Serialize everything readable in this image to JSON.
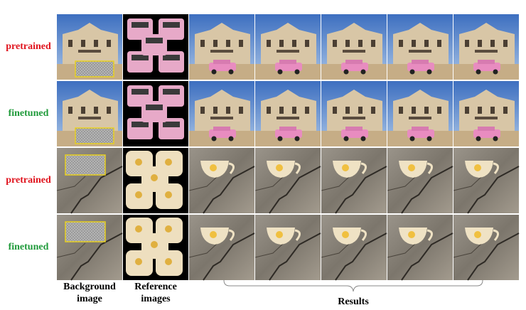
{
  "rows": [
    {
      "label": "pretrained"
    },
    {
      "label": "finetuned"
    },
    {
      "label": "pretrained"
    },
    {
      "label": "finetuned"
    }
  ],
  "column_labels": [
    {
      "lines": [
        "Background",
        "image"
      ]
    },
    {
      "lines": [
        "Reference",
        "images"
      ]
    }
  ],
  "results_label": "Results"
}
